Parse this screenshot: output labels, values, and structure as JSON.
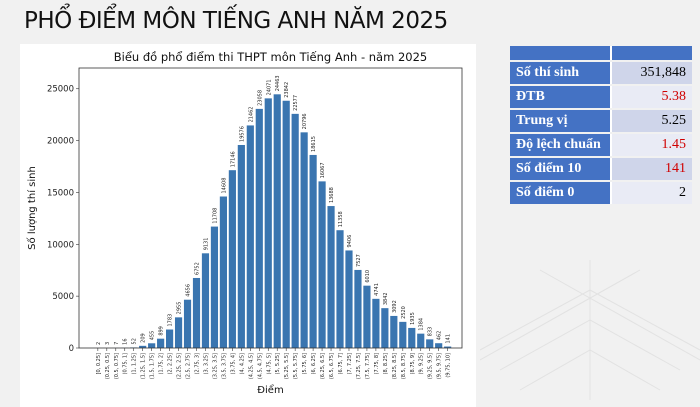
{
  "page_title": "PHỔ ĐIỂM MÔN TIẾNG ANH NĂM 2025",
  "stats": [
    {
      "label": "Số thí sinh",
      "value": "351,848",
      "highlight": false
    },
    {
      "label": "ĐTB",
      "value": "5.38",
      "highlight": true
    },
    {
      "label": "Trung vị",
      "value": "5.25",
      "highlight": false
    },
    {
      "label": "Độ lệch chuẩn",
      "value": "1.45",
      "highlight": true
    },
    {
      "label": "Số điểm 10",
      "value": "141",
      "highlight": true
    },
    {
      "label": "Số điểm 0",
      "value": "2",
      "highlight": false
    }
  ],
  "colors": {
    "bar": "#3a75b0",
    "table_header": "#4472c4",
    "highlight": "#d00000"
  },
  "watermark": "tuổi trẻ",
  "chart_data": {
    "type": "bar",
    "title": "Biểu đồ phổ điểm thi THPT môn Tiếng Anh - năm 2025",
    "xlabel": "Điểm",
    "ylabel": "Số lượng thí sinh",
    "ylim": [
      0,
      27000
    ],
    "yticks": [
      0,
      5000,
      10000,
      15000,
      20000,
      25000
    ],
    "grid": false,
    "categories": [
      "[0, 0.25]",
      "(0.25, 0.5]",
      "(0.5, 0.75]",
      "(0.75, 1]",
      "(1, 1.25]",
      "(1.25, 1.5]",
      "(1.5, 1.75]",
      "(1.75, 2]",
      "(2, 2.25]",
      "(2.25, 2.5]",
      "(2.5, 2.75]",
      "(2.75, 3]",
      "(3, 3.25]",
      "(3.25, 3.5]",
      "(3.5, 3.75]",
      "(3.75, 4]",
      "(4, 4.25]",
      "(4.25, 4.5]",
      "(4.5, 4.75]",
      "(4.75, 5]",
      "(5, 5.25]",
      "(5.25, 5.5]",
      "(5.5, 5.75]",
      "(5.75, 6]",
      "(6, 6.25]",
      "(6.25, 6.5]",
      "(6.5, 6.75]",
      "(6.75, 7]",
      "(7, 7.25]",
      "(7.25, 7.5]",
      "(7.5, 7.75]",
      "(7.75, 8]",
      "(8, 8.25]",
      "(8.25, 8.5]",
      "(8.5, 8.75]",
      "(8.75, 9]",
      "(9, 9.25]",
      "(9.25, 9.5]",
      "(9.5, 9.75]",
      "(9.75, 10]"
    ],
    "values": [
      2,
      3,
      7,
      16,
      52,
      209,
      455,
      899,
      1783,
      2955,
      4656,
      6752,
      9131,
      11708,
      14608,
      17146,
      19576,
      21462,
      23058,
      24071,
      24463,
      23842,
      22577,
      20796,
      18615,
      16067,
      13688,
      11358,
      9406,
      7527,
      6010,
      4741,
      3842,
      3092,
      2520,
      1935,
      1384,
      833,
      462,
      141
    ]
  }
}
